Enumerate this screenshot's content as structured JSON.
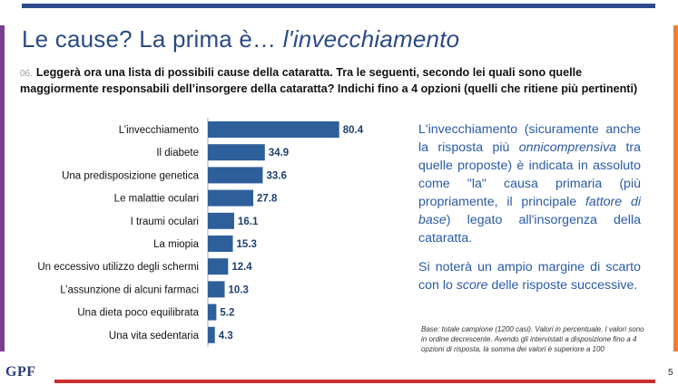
{
  "title": {
    "main": "Le cause?  La prima è…",
    "emphasis": "l'invecchiamento"
  },
  "question": {
    "number": "06.",
    "text": "Leggerà ora una lista di possibili cause della cataratta. Tra le seguenti, secondo lei quali sono quelle maggiormente responsabili dell’insorgere della cataratta? Indichi fino a 4 opzioni (quelli che ritiene più pertinenti)"
  },
  "chart_data": {
    "type": "bar",
    "orientation": "horizontal",
    "categories": [
      "L’invecchiamento",
      "Il diabete",
      "Una predisposizione genetica",
      "Le malattie oculari",
      "I traumi oculari",
      "La miopia",
      "Un eccessivo utilizzo degli schermi",
      "L’assunzione di alcuni farmaci",
      "Una dieta poco equilibrata",
      "Una vita sedentaria"
    ],
    "values": [
      80.4,
      34.9,
      33.6,
      27.8,
      16.1,
      15.3,
      12.4,
      10.3,
      5.2,
      4.3
    ],
    "value_labels": [
      "80.4",
      "34.9",
      "33.6",
      "27.8",
      "16.1",
      "15.3",
      "12.4",
      "10.3",
      "5.2",
      "4.3"
    ],
    "xlim": [
      0,
      100
    ],
    "bar_color": "#2e5f9b",
    "grid": false
  },
  "side_text": {
    "p1_a": "L'invecchiamento (sicuramente anche la risposta più ",
    "p1_b": "onnicomprensiva",
    "p1_c": " tra quelle proposte) è indicata in assoluto come \"la\" causa primaria (più propriamente, il principale ",
    "p1_d": "fattore di base",
    "p1_e": ") legato all'insorgenza della cataratta.",
    "p2_a": "Si noterà un ampio margine di scarto con lo ",
    "p2_b": "score",
    "p2_c": " delle risposte successive."
  },
  "footnote": "Base: totale campione (1200 casi). Valori in percentuale. I valori sono in ordine decrescente. Avendo gli intervistati a disposizione fino a 4 opzioni di risposta, la somma dei valori è superiore a 100",
  "logo": "GPF",
  "page_number": "5",
  "colors": {
    "title": "#2a4a86",
    "accent_text": "#2a5aa6",
    "bar": "#2e5f9b",
    "top_bar": "#2f4a8c",
    "bottom_bar": "#c9302c",
    "left_stripe": "#7a3d8f",
    "right_stripe": "#e6803a"
  }
}
